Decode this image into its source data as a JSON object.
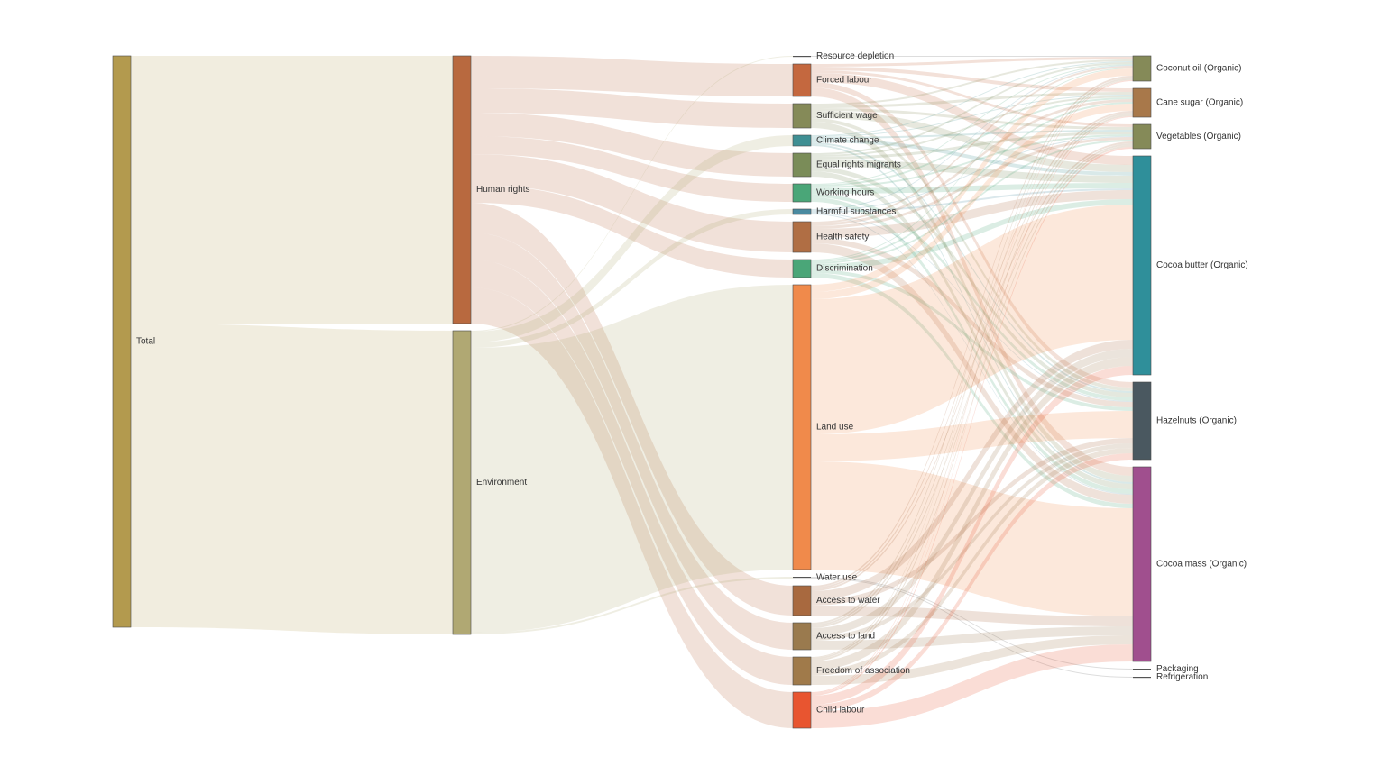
{
  "chart_data": {
    "type": "sankey",
    "nodes": [
      {
        "name": "Total",
        "color": "#b39a4e"
      },
      {
        "name": "Human rights",
        "color": "#b8693f"
      },
      {
        "name": "Environment",
        "color": "#b0a873"
      },
      {
        "name": "Resource depletion",
        "color": "#555555"
      },
      {
        "name": "Forced labour",
        "color": "#c4683f"
      },
      {
        "name": "Sufficient wage",
        "color": "#858a58"
      },
      {
        "name": "Climate change",
        "color": "#3f8f93"
      },
      {
        "name": "Equal rights migrants",
        "color": "#7a8c58"
      },
      {
        "name": "Working hours",
        "color": "#4aa678"
      },
      {
        "name": "Harmful substances",
        "color": "#4a8aa0"
      },
      {
        "name": "Health safety",
        "color": "#b06e44"
      },
      {
        "name": "Discrimination",
        "color": "#4aa678"
      },
      {
        "name": "Land use",
        "color": "#f08a4b"
      },
      {
        "name": "Water use",
        "color": "#555555"
      },
      {
        "name": "Access to water",
        "color": "#a8693f"
      },
      {
        "name": "Access to land",
        "color": "#9a7a4e"
      },
      {
        "name": "Freedom of association",
        "color": "#a07a4a"
      },
      {
        "name": "Child labour",
        "color": "#e85530"
      },
      {
        "name": "Coconut oil (Organic)",
        "color": "#858a58"
      },
      {
        "name": "Cane sugar (Organic)",
        "color": "#a8784a"
      },
      {
        "name": "Vegetables (Organic)",
        "color": "#858a58"
      },
      {
        "name": "Cocoa butter (Organic)",
        "color": "#2f8f9a"
      },
      {
        "name": "Hazelnuts (Organic)",
        "color": "#4a5860"
      },
      {
        "name": "Cocoa mass (Organic)",
        "color": "#a04f8e"
      },
      {
        "name": "Packaging",
        "color": "#555555"
      },
      {
        "name": "Refrigeration",
        "color": "#555555"
      }
    ],
    "links": [
      {
        "source": 0,
        "target": 1,
        "value": 297
      },
      {
        "source": 0,
        "target": 2,
        "value": 337
      },
      {
        "source": 1,
        "target": 4,
        "value": 36
      },
      {
        "source": 1,
        "target": 5,
        "value": 27
      },
      {
        "source": 1,
        "target": 7,
        "value": 26
      },
      {
        "source": 1,
        "target": 8,
        "value": 20
      },
      {
        "source": 1,
        "target": 10,
        "value": 34
      },
      {
        "source": 1,
        "target": 11,
        "value": 20
      },
      {
        "source": 1,
        "target": 14,
        "value": 33
      },
      {
        "source": 1,
        "target": 15,
        "value": 30
      },
      {
        "source": 1,
        "target": 16,
        "value": 31
      },
      {
        "source": 1,
        "target": 17,
        "value": 40
      },
      {
        "source": 2,
        "target": 3,
        "value": 1
      },
      {
        "source": 2,
        "target": 6,
        "value": 12
      },
      {
        "source": 2,
        "target": 9,
        "value": 6
      },
      {
        "source": 2,
        "target": 12,
        "value": 316
      },
      {
        "source": 2,
        "target": 13,
        "value": 2
      },
      {
        "source": 3,
        "target": 18,
        "value": 1
      },
      {
        "source": 4,
        "target": 18,
        "value": 3
      },
      {
        "source": 4,
        "target": 19,
        "value": 4
      },
      {
        "source": 4,
        "target": 20,
        "value": 3
      },
      {
        "source": 4,
        "target": 21,
        "value": 10
      },
      {
        "source": 4,
        "target": 22,
        "value": 6
      },
      {
        "source": 4,
        "target": 23,
        "value": 10
      },
      {
        "source": 5,
        "target": 18,
        "value": 2
      },
      {
        "source": 5,
        "target": 19,
        "value": 3
      },
      {
        "source": 5,
        "target": 20,
        "value": 3
      },
      {
        "source": 5,
        "target": 21,
        "value": 8
      },
      {
        "source": 5,
        "target": 22,
        "value": 4
      },
      {
        "source": 5,
        "target": 23,
        "value": 7
      },
      {
        "source": 6,
        "target": 18,
        "value": 1
      },
      {
        "source": 6,
        "target": 19,
        "value": 1
      },
      {
        "source": 6,
        "target": 20,
        "value": 2
      },
      {
        "source": 6,
        "target": 21,
        "value": 4
      },
      {
        "source": 6,
        "target": 22,
        "value": 2
      },
      {
        "source": 6,
        "target": 23,
        "value": 2
      },
      {
        "source": 7,
        "target": 18,
        "value": 2
      },
      {
        "source": 7,
        "target": 19,
        "value": 2
      },
      {
        "source": 7,
        "target": 20,
        "value": 3
      },
      {
        "source": 7,
        "target": 21,
        "value": 8
      },
      {
        "source": 7,
        "target": 22,
        "value": 5
      },
      {
        "source": 7,
        "target": 23,
        "value": 6
      },
      {
        "source": 8,
        "target": 18,
        "value": 1
      },
      {
        "source": 8,
        "target": 19,
        "value": 2
      },
      {
        "source": 8,
        "target": 20,
        "value": 2
      },
      {
        "source": 8,
        "target": 21,
        "value": 6
      },
      {
        "source": 8,
        "target": 22,
        "value": 4
      },
      {
        "source": 8,
        "target": 23,
        "value": 5
      },
      {
        "source": 9,
        "target": 18,
        "value": 1
      },
      {
        "source": 9,
        "target": 20,
        "value": 1
      },
      {
        "source": 9,
        "target": 21,
        "value": 2
      },
      {
        "source": 9,
        "target": 22,
        "value": 1
      },
      {
        "source": 9,
        "target": 23,
        "value": 1
      },
      {
        "source": 10,
        "target": 18,
        "value": 2
      },
      {
        "source": 10,
        "target": 19,
        "value": 3
      },
      {
        "source": 10,
        "target": 20,
        "value": 3
      },
      {
        "source": 10,
        "target": 21,
        "value": 10
      },
      {
        "source": 10,
        "target": 22,
        "value": 6
      },
      {
        "source": 10,
        "target": 23,
        "value": 10
      },
      {
        "source": 11,
        "target": 18,
        "value": 1
      },
      {
        "source": 11,
        "target": 19,
        "value": 2
      },
      {
        "source": 11,
        "target": 20,
        "value": 2
      },
      {
        "source": 11,
        "target": 21,
        "value": 6
      },
      {
        "source": 11,
        "target": 22,
        "value": 4
      },
      {
        "source": 11,
        "target": 23,
        "value": 5
      },
      {
        "source": 12,
        "target": 18,
        "value": 8
      },
      {
        "source": 12,
        "target": 19,
        "value": 8
      },
      {
        "source": 12,
        "target": 21,
        "value": 150
      },
      {
        "source": 12,
        "target": 22,
        "value": 30
      },
      {
        "source": 12,
        "target": 23,
        "value": 120
      },
      {
        "source": 13,
        "target": 24,
        "value": 1
      },
      {
        "source": 13,
        "target": 25,
        "value": 1
      },
      {
        "source": 14,
        "target": 18,
        "value": 2
      },
      {
        "source": 14,
        "target": 19,
        "value": 2
      },
      {
        "source": 14,
        "target": 20,
        "value": 2
      },
      {
        "source": 14,
        "target": 21,
        "value": 10
      },
      {
        "source": 14,
        "target": 22,
        "value": 6
      },
      {
        "source": 14,
        "target": 23,
        "value": 11
      },
      {
        "source": 15,
        "target": 18,
        "value": 2
      },
      {
        "source": 15,
        "target": 19,
        "value": 2
      },
      {
        "source": 15,
        "target": 20,
        "value": 2
      },
      {
        "source": 15,
        "target": 21,
        "value": 9
      },
      {
        "source": 15,
        "target": 22,
        "value": 5
      },
      {
        "source": 15,
        "target": 23,
        "value": 10
      },
      {
        "source": 16,
        "target": 18,
        "value": 1
      },
      {
        "source": 16,
        "target": 19,
        "value": 2
      },
      {
        "source": 16,
        "target": 20,
        "value": 2
      },
      {
        "source": 16,
        "target": 21,
        "value": 10
      },
      {
        "source": 16,
        "target": 22,
        "value": 6
      },
      {
        "source": 16,
        "target": 23,
        "value": 10
      },
      {
        "source": 17,
        "target": 18,
        "value": 1
      },
      {
        "source": 17,
        "target": 19,
        "value": 1
      },
      {
        "source": 17,
        "target": 20,
        "value": 2
      },
      {
        "source": 17,
        "target": 21,
        "value": 10
      },
      {
        "source": 17,
        "target": 22,
        "value": 7
      },
      {
        "source": 17,
        "target": 23,
        "value": 19
      }
    ]
  }
}
